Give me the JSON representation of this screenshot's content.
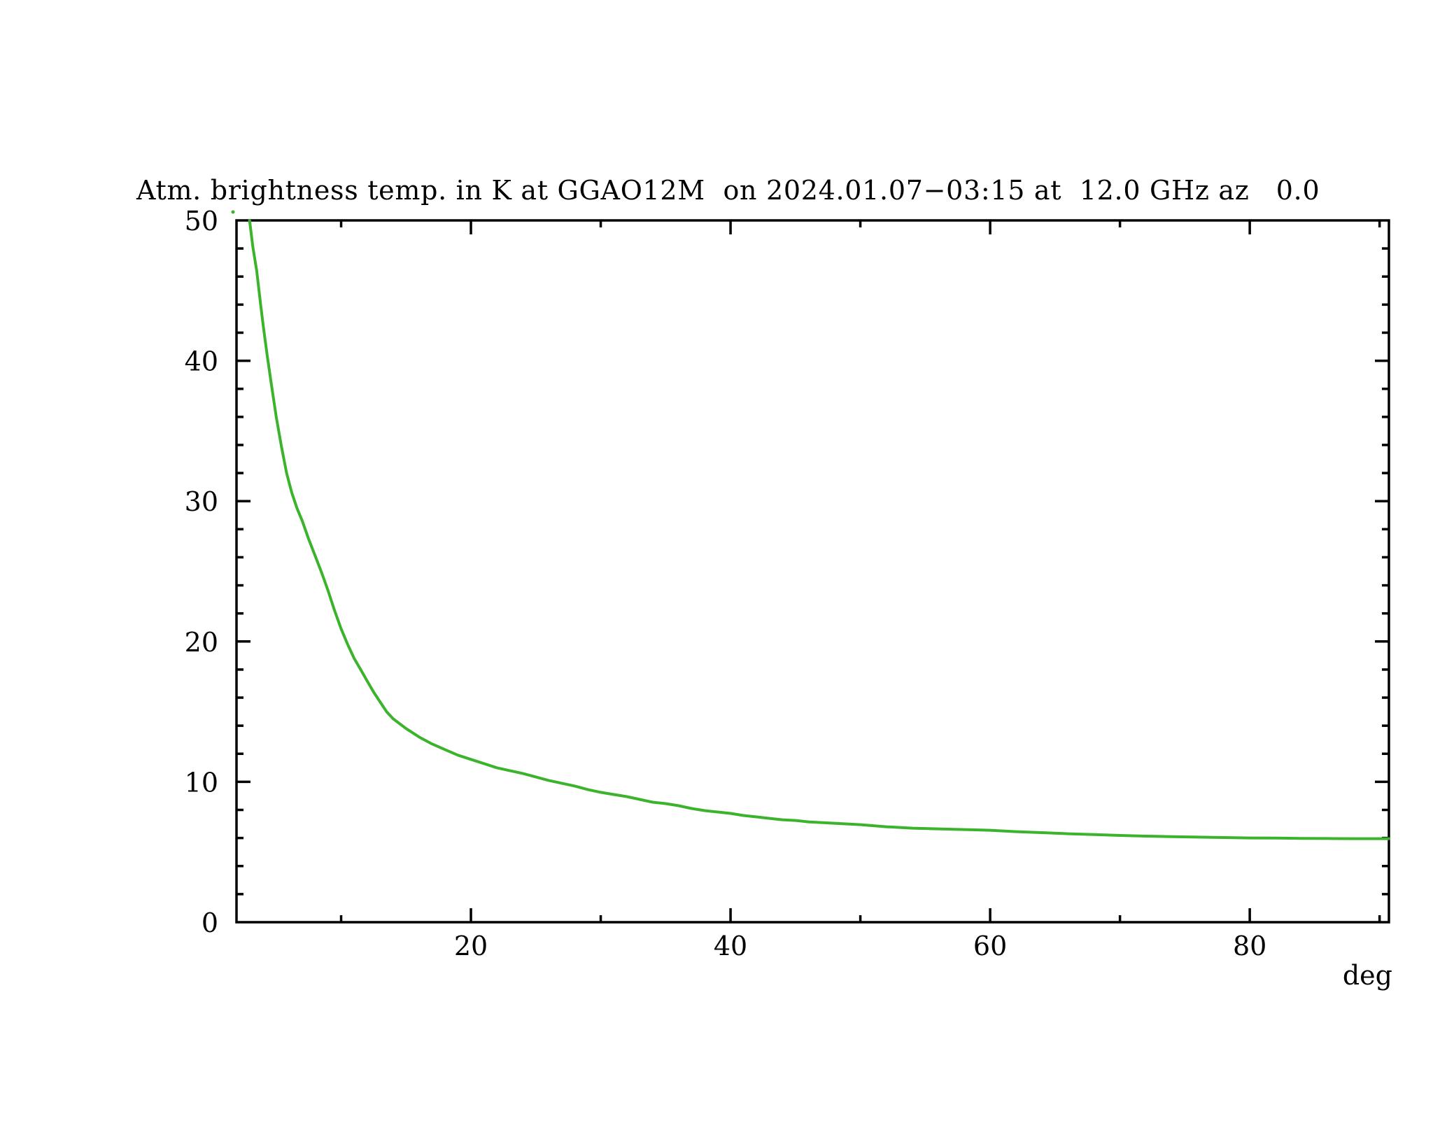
{
  "page": {
    "background": "#ffffff",
    "text_color": "#000000"
  },
  "chart_data": {
    "type": "line",
    "title": "Atm. brightness temp. in K at GGAO12M  on 2024.01.07−03:15 at  12.0 GHz az   0.0",
    "xlabel": "deg",
    "ylabel": "",
    "grid": false,
    "legend": null,
    "axis_color": "#000000",
    "x_axis": {
      "label": "deg",
      "range": [
        1.94,
        90.72
      ],
      "major_ticks": [
        20,
        40,
        60,
        80
      ],
      "minor_ticks": [
        10,
        30,
        50,
        70,
        90
      ]
    },
    "y_axis": {
      "label": "",
      "range": [
        0,
        50
      ],
      "major_ticks": [
        0,
        10,
        20,
        30,
        40,
        50
      ],
      "minor_tick_step": 2
    },
    "series": [
      {
        "name": "atmospheric brightness temperature",
        "color": "#3cb32c",
        "points": [
          [
            2.95,
            50.0
          ],
          [
            3.2,
            48.1
          ],
          [
            3.5,
            46.4
          ],
          [
            3.8,
            44.0
          ],
          [
            4.0,
            42.5
          ],
          [
            4.3,
            40.4
          ],
          [
            4.6,
            38.5
          ],
          [
            5.0,
            36.0
          ],
          [
            5.4,
            33.9
          ],
          [
            5.8,
            32.0
          ],
          [
            6.2,
            30.6
          ],
          [
            6.6,
            29.5
          ],
          [
            7.0,
            28.6
          ],
          [
            7.5,
            27.3
          ],
          [
            8.0,
            26.1
          ],
          [
            8.5,
            24.9
          ],
          [
            9.0,
            23.6
          ],
          [
            9.5,
            22.2
          ],
          [
            10.0,
            20.9
          ],
          [
            10.5,
            19.8
          ],
          [
            11.0,
            18.8
          ],
          [
            11.5,
            18.0
          ],
          [
            12.0,
            17.2
          ],
          [
            12.5,
            16.4
          ],
          [
            13.0,
            15.7
          ],
          [
            13.5,
            15.0
          ],
          [
            14.0,
            14.5
          ],
          [
            15.0,
            13.8
          ],
          [
            16.0,
            13.2
          ],
          [
            17.0,
            12.7
          ],
          [
            18.0,
            12.3
          ],
          [
            19.0,
            11.9
          ],
          [
            20.0,
            11.6
          ],
          [
            21.0,
            11.3
          ],
          [
            22.0,
            11.0
          ],
          [
            23.0,
            10.8
          ],
          [
            24.0,
            10.6
          ],
          [
            25.0,
            10.35
          ],
          [
            26.0,
            10.1
          ],
          [
            27.0,
            9.9
          ],
          [
            28.0,
            9.7
          ],
          [
            29.0,
            9.45
          ],
          [
            30.0,
            9.25
          ],
          [
            31.0,
            9.1
          ],
          [
            32.0,
            8.95
          ],
          [
            33.0,
            8.75
          ],
          [
            34.0,
            8.55
          ],
          [
            35.0,
            8.45
          ],
          [
            36.0,
            8.3
          ],
          [
            37.0,
            8.1
          ],
          [
            38.0,
            7.95
          ],
          [
            39.0,
            7.85
          ],
          [
            40.0,
            7.75
          ],
          [
            41.0,
            7.6
          ],
          [
            42.0,
            7.5
          ],
          [
            43.0,
            7.4
          ],
          [
            44.0,
            7.3
          ],
          [
            45.0,
            7.25
          ],
          [
            46.0,
            7.15
          ],
          [
            47.0,
            7.1
          ],
          [
            48.0,
            7.05
          ],
          [
            49.0,
            7.0
          ],
          [
            50.0,
            6.95
          ],
          [
            52.0,
            6.8
          ],
          [
            54.0,
            6.7
          ],
          [
            56.0,
            6.65
          ],
          [
            58.0,
            6.6
          ],
          [
            60.0,
            6.55
          ],
          [
            62.0,
            6.45
          ],
          [
            64.0,
            6.38
          ],
          [
            66.0,
            6.3
          ],
          [
            68.0,
            6.24
          ],
          [
            70.0,
            6.18
          ],
          [
            72.0,
            6.13
          ],
          [
            74.0,
            6.09
          ],
          [
            76.0,
            6.06
          ],
          [
            78.0,
            6.03
          ],
          [
            80.0,
            6.0
          ],
          [
            82.0,
            5.99
          ],
          [
            84.0,
            5.97
          ],
          [
            86.0,
            5.96
          ],
          [
            88.0,
            5.95
          ],
          [
            90.0,
            5.95
          ],
          [
            90.72,
            5.95
          ]
        ]
      }
    ],
    "stray_point": {
      "x": 1.67,
      "y": 50.6
    }
  }
}
